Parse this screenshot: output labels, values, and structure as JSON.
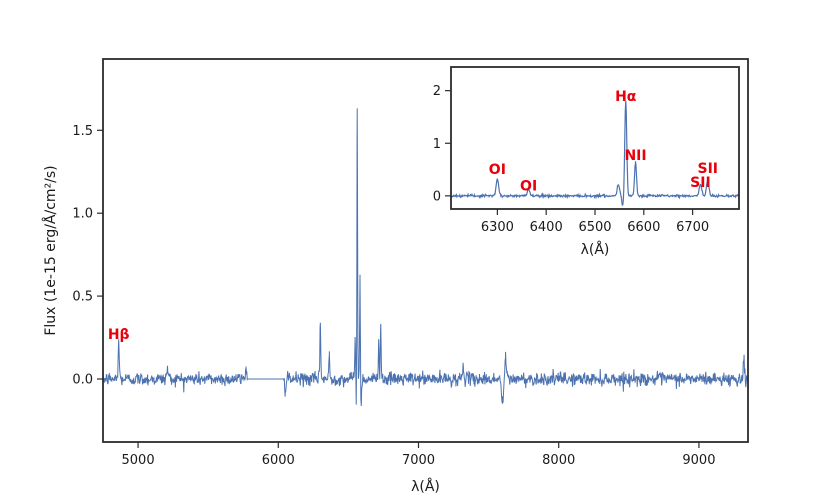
{
  "chart_data": [
    {
      "type": "line",
      "xlabel": "λ(Å)",
      "ylabel": "Flux (1e-15 erg/Å/cm²/s)",
      "xlim": [
        4750,
        9350
      ],
      "ylim": [
        -0.38,
        1.93
      ],
      "xticks": [
        5000,
        6000,
        7000,
        8000,
        9000
      ],
      "yticks": [
        0.0,
        0.5,
        1.0,
        1.5
      ],
      "ytick_labels": [
        "0.0",
        "0.5",
        "1.0",
        "1.5"
      ],
      "grid": false,
      "color": "#4c72b0",
      "gap": [
        5780,
        6040
      ],
      "noise_sigma": 0.02,
      "features": [
        {
          "x": 4862,
          "y": 0.22,
          "w": 4
        },
        {
          "x": 5210,
          "y": 0.07,
          "w": 5
        },
        {
          "x": 5770,
          "y": 0.06,
          "w": 6
        },
        {
          "x": 6050,
          "y": -0.08,
          "w": 5
        },
        {
          "x": 6300,
          "y": 0.36,
          "w": 3
        },
        {
          "x": 6364,
          "y": 0.15,
          "w": 3
        },
        {
          "x": 6548,
          "y": 0.25,
          "w": 3
        },
        {
          "x": 6560,
          "y": -0.28,
          "w": 4
        },
        {
          "x": 6563,
          "y": 1.82,
          "w": 2.5
        },
        {
          "x": 6583,
          "y": 0.65,
          "w": 2.5
        },
        {
          "x": 6590,
          "y": -0.15,
          "w": 4
        },
        {
          "x": 6716,
          "y": 0.25,
          "w": 3
        },
        {
          "x": 6731,
          "y": 0.33,
          "w": 3
        },
        {
          "x": 7320,
          "y": 0.08,
          "w": 5
        },
        {
          "x": 7600,
          "y": -0.14,
          "w": 8
        },
        {
          "x": 7620,
          "y": 0.13,
          "w": 6
        },
        {
          "x": 9320,
          "y": 0.12,
          "w": 4
        }
      ],
      "annotations": [
        {
          "text": "Hβ",
          "x": 4862,
          "y": 0.24,
          "color": "#e8000b"
        }
      ]
    },
    {
      "type": "line",
      "inset": true,
      "xlabel": "λ(Å)",
      "xlim": [
        6205,
        6795
      ],
      "ylim": [
        -0.25,
        2.45
      ],
      "xticks": [
        6300,
        6400,
        6500,
        6600,
        6700
      ],
      "yticks": [
        0,
        1,
        2
      ],
      "ytick_labels": [
        "0",
        "1",
        "2"
      ],
      "grid": false,
      "color": "#4c72b0",
      "noise_sigma": 0.012,
      "features": [
        {
          "x": 6300,
          "y": 0.32,
          "w": 2.5
        },
        {
          "x": 6364,
          "y": 0.13,
          "w": 2.5
        },
        {
          "x": 6548,
          "y": 0.22,
          "w": 2.5
        },
        {
          "x": 6557,
          "y": -0.18,
          "w": 2
        },
        {
          "x": 6563,
          "y": 1.82,
          "w": 2
        },
        {
          "x": 6583,
          "y": 0.65,
          "w": 2
        },
        {
          "x": 6716,
          "y": 0.22,
          "w": 2.5
        },
        {
          "x": 6731,
          "y": 0.29,
          "w": 2.5
        }
      ],
      "annotations": [
        {
          "text": "OI",
          "x": 6300,
          "y": 0.42,
          "color": "#e8000b"
        },
        {
          "text": "OI",
          "x": 6364,
          "y": 0.1,
          "color": "#e8000b"
        },
        {
          "text": "Hα",
          "x": 6563,
          "y": 1.8,
          "color": "#e8000b"
        },
        {
          "text": "NII",
          "x": 6583,
          "y": 0.68,
          "color": "#e8000b"
        },
        {
          "text": "SII",
          "x": 6716,
          "y": 0.17,
          "color": "#e8000b"
        },
        {
          "text": "SII",
          "x": 6731,
          "y": 0.43,
          "color": "#e8000b"
        }
      ]
    }
  ]
}
